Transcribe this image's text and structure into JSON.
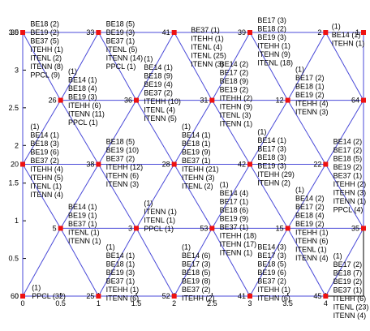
{
  "chart_data": {
    "type": "network",
    "xlim": [
      0,
      4.5
    ],
    "ylim": [
      0,
      3.5
    ],
    "xticks": [
      "0",
      "0.5",
      "1",
      "1.5",
      "2",
      "2.5",
      "3",
      "3.5",
      "4"
    ],
    "yticks": [
      "0",
      "0.5",
      "1",
      "1.5",
      "2",
      "2.5",
      "3",
      "3.5"
    ],
    "colors": {
      "edge": "#4a4ad8",
      "node": "#ee1111",
      "axes": "#000000"
    },
    "nodes": [
      {
        "id": "30",
        "x": 0,
        "y": 3.5
      },
      {
        "id": "33",
        "x": 1,
        "y": 3.5
      },
      {
        "id": "41",
        "x": 2,
        "y": 3.5
      },
      {
        "id": "39",
        "x": 3,
        "y": 3.5
      },
      {
        "id": "2",
        "x": 4,
        "y": 3.5
      },
      {
        "id": "1",
        "x": 4.5,
        "y": 3.5
      },
      {
        "id": "26",
        "x": 0.5,
        "y": 2.6
      },
      {
        "id": "36",
        "x": 1.5,
        "y": 2.6
      },
      {
        "id": "31",
        "x": 2.5,
        "y": 2.6
      },
      {
        "id": "12",
        "x": 3.5,
        "y": 2.6
      },
      {
        "id": "64",
        "x": 4.5,
        "y": 2.6
      },
      {
        "id": "20",
        "x": 0,
        "y": 1.75
      },
      {
        "id": "38",
        "x": 1,
        "y": 1.75
      },
      {
        "id": "28",
        "x": 2,
        "y": 1.75
      },
      {
        "id": "42",
        "x": 3,
        "y": 1.75
      },
      {
        "id": "22",
        "x": 4,
        "y": 1.75
      },
      {
        "id": "5",
        "x": 0.5,
        "y": 0.9
      },
      {
        "id": "3",
        "x": 1.5,
        "y": 0.9
      },
      {
        "id": "53",
        "x": 2.5,
        "y": 0.9
      },
      {
        "id": "15",
        "x": 3.5,
        "y": 0.9
      },
      {
        "id": "35",
        "x": 4.5,
        "y": 0.9
      },
      {
        "id": "60",
        "x": 0,
        "y": 0
      },
      {
        "id": "25",
        "x": 1,
        "y": 0
      },
      {
        "id": "52",
        "x": 2,
        "y": 0
      },
      {
        "id": "41",
        "x": 3,
        "y": 0
      },
      {
        "id": "45",
        "x": 4,
        "y": 0
      }
    ],
    "edges": [
      [
        0,
        1
      ],
      [
        1,
        2
      ],
      [
        2,
        3
      ],
      [
        3,
        4
      ],
      [
        4,
        5
      ],
      [
        0,
        6
      ],
      [
        1,
        6
      ],
      [
        1,
        7
      ],
      [
        2,
        7
      ],
      [
        2,
        8
      ],
      [
        3,
        8
      ],
      [
        3,
        9
      ],
      [
        4,
        9
      ],
      [
        4,
        10
      ],
      [
        5,
        10
      ],
      [
        6,
        7
      ],
      [
        7,
        8
      ],
      [
        8,
        9
      ],
      [
        9,
        10
      ],
      [
        6,
        11
      ],
      [
        6,
        12
      ],
      [
        7,
        12
      ],
      [
        7,
        13
      ],
      [
        8,
        13
      ],
      [
        8,
        14
      ],
      [
        9,
        14
      ],
      [
        9,
        15
      ],
      [
        10,
        15
      ],
      [
        11,
        12
      ],
      [
        12,
        13
      ],
      [
        13,
        14
      ],
      [
        14,
        15
      ],
      [
        11,
        16
      ],
      [
        12,
        16
      ],
      [
        12,
        17
      ],
      [
        13,
        17
      ],
      [
        13,
        18
      ],
      [
        14,
        18
      ],
      [
        14,
        19
      ],
      [
        15,
        19
      ],
      [
        15,
        20
      ],
      [
        16,
        17
      ],
      [
        17,
        18
      ],
      [
        18,
        19
      ],
      [
        19,
        20
      ],
      [
        16,
        21
      ],
      [
        16,
        22
      ],
      [
        17,
        22
      ],
      [
        17,
        23
      ],
      [
        18,
        23
      ],
      [
        18,
        24
      ],
      [
        19,
        24
      ],
      [
        19,
        25
      ],
      [
        20,
        25
      ],
      [
        21,
        22
      ],
      [
        22,
        23
      ],
      [
        23,
        24
      ],
      [
        24,
        25
      ],
      [
        0,
        21
      ],
      [
        5,
        20
      ]
    ],
    "annotations": [
      {
        "x": 0.1,
        "y": 3.58,
        "lines": [
          "BE18 (2)",
          "BE19 (2)",
          "BE37 (5)",
          "ITEHH (1)",
          "ITENL (2)",
          "ITENN (8)",
          "PPCL (9)"
        ]
      },
      {
        "x": 1.1,
        "y": 3.58,
        "lines": [
          "BE18 (5)",
          "BE19 (3)",
          "BE37 (1)",
          "ITENL (5)",
          "ITENN (14)",
          "PPCL (1)"
        ]
      },
      {
        "x": 3.1,
        "y": 3.63,
        "lines": [
          "BE17 (3)",
          "BE18 (2)",
          "BE19 (3)",
          "ITEHH (1)",
          "ITEHN (9)",
          "ITENL (18)"
        ]
      },
      {
        "x": 2.22,
        "y": 3.5,
        "lines": [
          "BE37 (1)",
          "ITEHH (1)",
          "ITENL (4)",
          "ITENL (25)",
          "ITENN (3)"
        ]
      },
      {
        "x": 4.08,
        "y": 3.55,
        "lines": [
          "(1)",
          "BE14 (1)",
          "ITEHN (1)"
        ]
      },
      {
        "x": 0.6,
        "y": 2.95,
        "lines": [
          "(1)",
          "BE14 (1)",
          "BE18 (4)",
          "BE19 (3)",
          "ITEHH (6)",
          "ITENN (11)",
          "PPCL (1)"
        ]
      },
      {
        "x": 1.6,
        "y": 3.12,
        "lines": [
          "(1)",
          "BE14 (1)",
          "BE18 (9)",
          "BE19 (4)",
          "BE37 (2)",
          "ITEHH (10)",
          "ITENL (4)",
          "ITENN (5)"
        ]
      },
      {
        "x": 2.6,
        "y": 3.05,
        "lines": [
          "BE14 (2)",
          "BE17 (2)",
          "BE18 (9)",
          "BE19 (2)",
          "ITEHH (2)",
          "ITEHN (9)",
          "ITENL (3)",
          "ITENN (1)"
        ]
      },
      {
        "x": 3.6,
        "y": 2.98,
        "lines": [
          "(1)",
          "BE17 (2)",
          "BE18 (1)",
          "BE19 (2)",
          "ITEHH (4)",
          "ITENN (3)"
        ]
      },
      {
        "x": 0.1,
        "y": 2.22,
        "lines": [
          "(1)",
          "BE14 (1)",
          "BE18 (3)",
          "BE19 (6)",
          "BE37 (2)",
          "ITEHH (4)",
          "ITEHN (5)",
          "ITENL (1)",
          "ITENN (4)"
        ]
      },
      {
        "x": 1.1,
        "y": 2.02,
        "lines": [
          "BE18 (5)",
          "BE19 (10)",
          "BE37 (2)",
          "ITEHH (12)",
          "ITEHN (6)",
          "ITENN (3)"
        ]
      },
      {
        "x": 2.1,
        "y": 2.22,
        "lines": [
          "(1)",
          "BE14 (1)",
          "BE18 (1)",
          "BE19 (9)",
          "BE37 (1)",
          "ITEHH (21)",
          "ITEHN (3)",
          "ITENL (2)"
        ]
      },
      {
        "x": 3.1,
        "y": 2.15,
        "lines": [
          "(1)",
          "BE14 (1)",
          "BE17 (3)",
          "BE18 (3)",
          "BE19 (3)",
          "ITEHH (29)",
          "ITEHN (2)"
        ]
      },
      {
        "x": 4.1,
        "y": 2.02,
        "lines": [
          "BE14 (2)",
          "BE17 (2)",
          "BE18 (5)",
          "BE19 (2)",
          "BE37 (1)",
          "ITEHH (2)",
          "ITEHN (3)",
          "ITENN (1)",
          "PPCL (4)"
        ]
      },
      {
        "x": 0.6,
        "y": 1.15,
        "lines": [
          "BE14 (1)",
          "BE19 (1)",
          "BE37 (1)",
          "ITENL (1)",
          "ITENN (1)"
        ]
      },
      {
        "x": 1.6,
        "y": 1.2,
        "lines": [
          "(1)",
          "ITENN (1)",
          "ITENL (1)",
          "PPCL (1)"
        ]
      },
      {
        "x": 2.6,
        "y": 1.45,
        "lines": [
          "(1)",
          "BE14 (4)",
          "BE17 (1)",
          "BE18 (6)",
          "BE19 (9)",
          "BE37 (1)",
          "ITEHH (18)",
          "ITEHN (17)",
          "ITENN (1)"
        ]
      },
      {
        "x": 3.6,
        "y": 1.38,
        "lines": [
          "(1)",
          "BE14 (2)",
          "BE17 (2)",
          "BE18 (4)",
          "BE19 (2)",
          "ITEHH (1)",
          "ITEHN (6)",
          "ITENL (1)",
          "ITENN (4)"
        ]
      },
      {
        "x": 1.1,
        "y": 0.62,
        "lines": [
          "(1)",
          "BE14 (1)",
          "BE18 (1)",
          "BE19 (3)",
          "BE37 (1)",
          "ITEHH (1)",
          "ITENN (6)"
        ]
      },
      {
        "x": 2.1,
        "y": 0.62,
        "lines": [
          "(1)",
          "BE14 (6)",
          "BE17 (3)",
          "BE18 (5)",
          "BE19 (8)",
          "BE37 (2)",
          "ITEHH (2)"
        ]
      },
      {
        "x": 3.1,
        "y": 0.62,
        "lines": [
          "BE14 (3)",
          "BE17 (3)",
          "BE18 (5)",
          "BE19 (6)",
          "BE37 (2)",
          "ITEHH (1)",
          "ITEHN (6)"
        ]
      },
      {
        "x": 4.1,
        "y": 0.5,
        "lines": [
          "(1)",
          "BE17 (2)",
          "BE18 (7)",
          "BE19 (2)",
          "BE37 (1)",
          "ITEHH (6)",
          "ITENL (23)",
          "ITENN (4)"
        ]
      },
      {
        "x": 0.12,
        "y": 0.08,
        "lines": [
          "(1)",
          "PPCL (32)"
        ]
      }
    ]
  }
}
